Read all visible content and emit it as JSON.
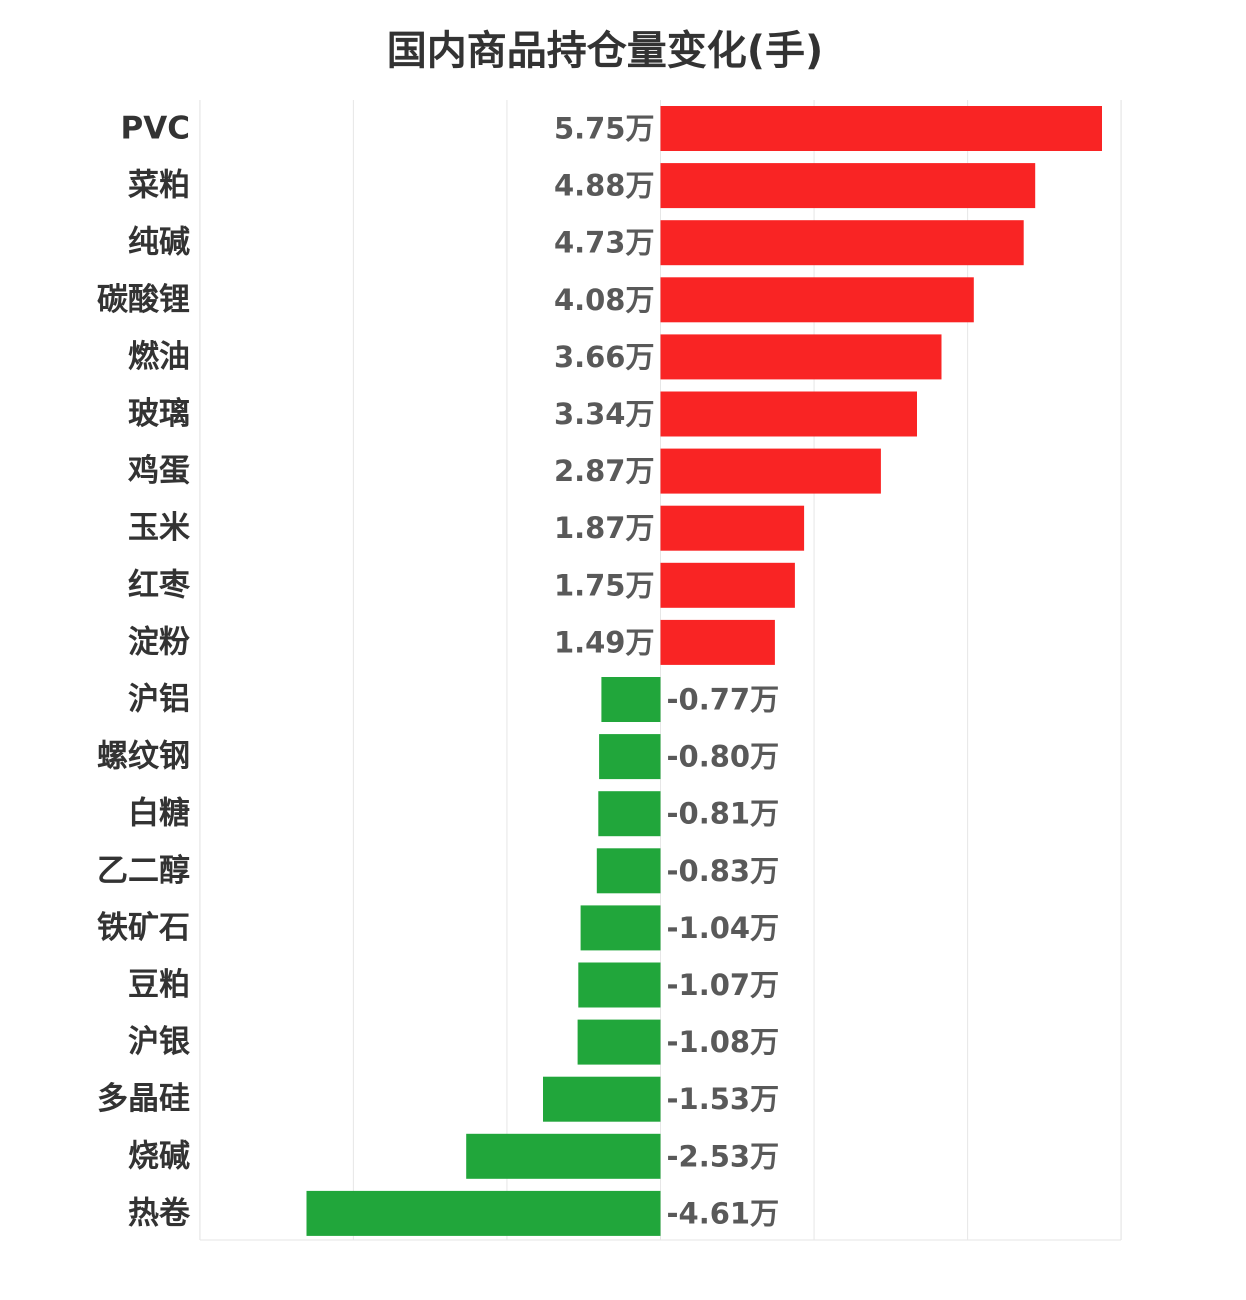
{
  "chart_data": {
    "type": "bar",
    "orientation": "horizontal",
    "title": "国内商品持仓量变化(手)",
    "xlabel": "",
    "ylabel": "",
    "unit_suffix": "万",
    "xlim": [
      -5,
      3
    ],
    "grid": true,
    "categories": [
      "PVC",
      "菜粕",
      "纯碱",
      "碳酸锂",
      "燃油",
      "玻璃",
      "鸡蛋",
      "玉米",
      "红枣",
      "淀粉",
      "沪铝",
      "螺纹钢",
      "白糖",
      "乙二醇",
      "铁矿石",
      "豆粕",
      "沪银",
      "多晶硅",
      "烧碱",
      "热卷"
    ],
    "values": [
      5.75,
      4.88,
      4.73,
      4.08,
      3.66,
      3.34,
      2.87,
      1.87,
      1.75,
      1.49,
      -0.77,
      -0.8,
      -0.81,
      -0.83,
      -1.04,
      -1.07,
      -1.08,
      -1.53,
      -2.53,
      -4.61
    ],
    "value_labels": [
      "5.75万",
      "4.88万",
      "4.73万",
      "4.08万",
      "3.66万",
      "3.34万",
      "2.87万",
      "1.87万",
      "1.75万",
      "1.49万",
      "-0.77万",
      "-0.80万",
      "-0.81万",
      "-0.83万",
      "-1.04万",
      "-1.07万",
      "-1.08万",
      "-1.53万",
      "-2.53万",
      "-4.61万"
    ],
    "colors": {
      "positive": "#f92424",
      "negative": "#21a63b",
      "grid": "#e6e6e6",
      "text": "#333333",
      "value_text": "#595959"
    }
  }
}
